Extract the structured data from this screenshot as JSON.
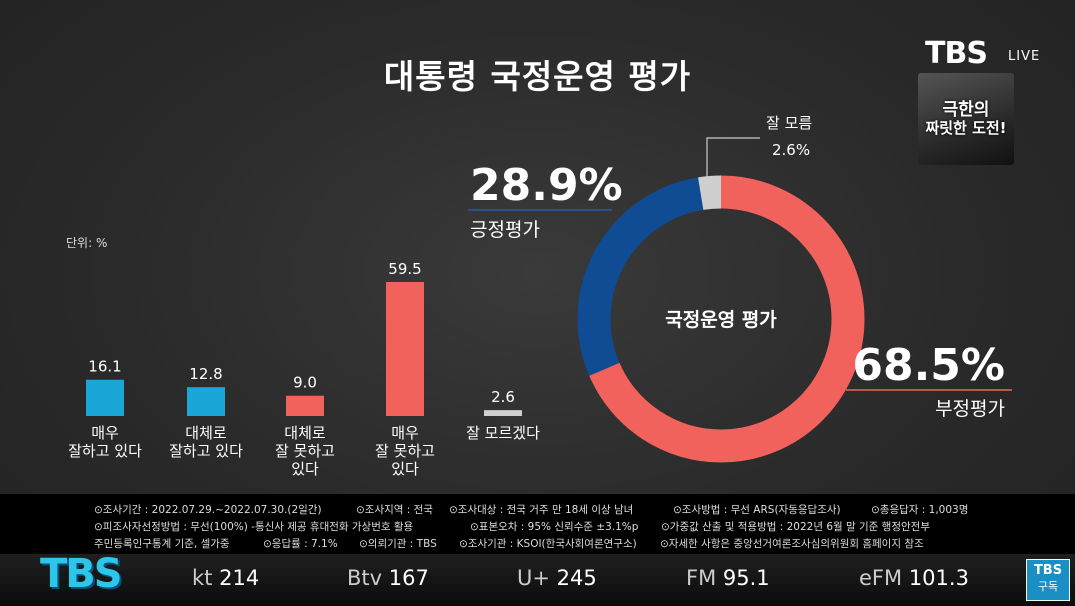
{
  "title": "대통령 국정운영 평가",
  "broadcaster": {
    "logo": "TBS",
    "live": "LIVE"
  },
  "thumbnail": {
    "line1": "극한의",
    "line2": "짜릿한 도전!"
  },
  "unit": "단위: %",
  "chart_data": [
    {
      "type": "bar",
      "categories": [
        [
          "매우",
          "잘하고 있다"
        ],
        [
          "대체로",
          "잘하고 있다"
        ],
        [
          "대체로",
          "잘 못하고",
          "있다"
        ],
        [
          "매우",
          "잘 못하고",
          "있다"
        ],
        [
          "잘 모르겠다"
        ]
      ],
      "values": [
        16.1,
        12.8,
        9.0,
        59.5,
        2.6
      ],
      "value_labels": [
        "16.1",
        "12.8",
        "9.0",
        "59.5",
        "2.6"
      ],
      "colors": [
        "#1aa6d6",
        "#1aa6d6",
        "#f2625c",
        "#f2625c",
        "#cfcfcf"
      ],
      "ylim": [
        0,
        59.5
      ]
    },
    {
      "type": "pie",
      "center_label": "국정운영 평가",
      "slices": [
        {
          "label": "부정평가",
          "value": 68.5,
          "value_label": "68.5%",
          "color": "#f2625c"
        },
        {
          "label": "긍정평가",
          "value": 28.9,
          "value_label": "28.9%",
          "color": "#0f4c93"
        },
        {
          "label": "잘 모름",
          "value": 2.6,
          "value_label": "2.6%",
          "color": "#cfcfcf"
        }
      ]
    }
  ],
  "notes": [
    "⊙조사기간 : 2022.07.29.~2022.07.30.(2일간)",
    "⊙조사지역 : 전국",
    "⊙조사대상 : 전국 거주 만 18세 이상 남녀",
    "⊙조사방법 : 무선 ARS(자동응답조사)",
    "⊙총응답자 : 1,003명",
    "⊙피조사자선정방법 : 무선(100%) -통신사 제공 휴대전화 가상번호 활용",
    "⊙표본오차 : 95% 신뢰수준 ±3.1%p",
    "⊙가중값 산출 및 적용방법 : 2022년 6월 말 기준 행정안전부",
    "주민등록인구통계 기준, 셀가중",
    "⊙응답률 : 7.1%",
    "⊙의뢰기관 : TBS",
    "⊙조사기관 : KSOI(한국사회여론연구소)",
    "⊙자세한 사항은 중앙선거여론조사심의위원회 홈페이지 참조"
  ],
  "ticker": {
    "logo": "TBS",
    "channels": [
      {
        "name": "kt",
        "num": "214"
      },
      {
        "name": "Btv",
        "num": "167"
      },
      {
        "name": "U+",
        "num": "245"
      },
      {
        "name": "FM",
        "num": "95.1"
      },
      {
        "name": "eFM",
        "num": "101.3"
      }
    ],
    "subscribe": {
      "l1": "TBS",
      "l2": "구독"
    }
  }
}
